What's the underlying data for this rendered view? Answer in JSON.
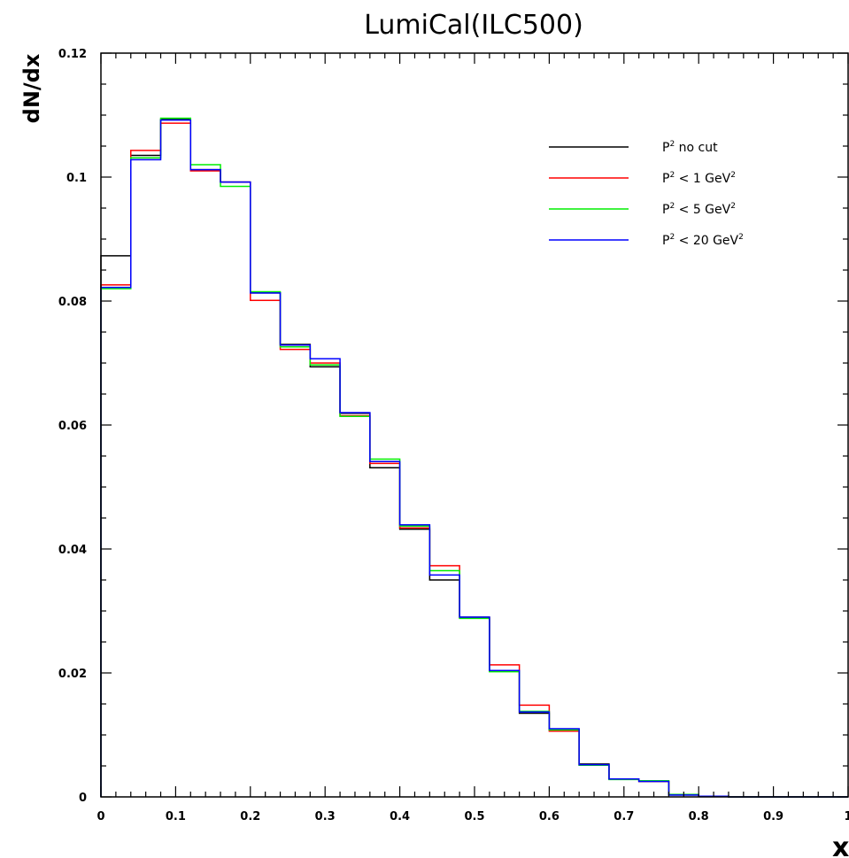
{
  "chart_data": {
    "type": "line",
    "title": "LumiCal(ILC500)",
    "xlabel": "x",
    "ylabel": "dN/dx",
    "xlim": [
      0,
      1
    ],
    "ylim": [
      0,
      0.12
    ],
    "xticks": [
      0,
      0.1,
      0.2,
      0.3,
      0.4,
      0.5,
      0.6,
      0.7,
      0.8,
      0.9,
      1
    ],
    "xtick_labels": [
      "0",
      "0.1",
      "0.2",
      "0.3",
      "0.4",
      "0.5",
      "0.6",
      "0.7",
      "0.8",
      "0.9",
      "1"
    ],
    "yticks": [
      0,
      0.02,
      0.04,
      0.06,
      0.08,
      0.1,
      0.12
    ],
    "ytick_labels": [
      "0",
      "0.02",
      "0.04",
      "0.06",
      "0.08",
      "0.1",
      "0.12"
    ],
    "grid": false,
    "legend_position": "top-right",
    "bin_edges": [
      0,
      0.04,
      0.08,
      0.12,
      0.16,
      0.2,
      0.24,
      0.28,
      0.32,
      0.36,
      0.4,
      0.44,
      0.48,
      0.52,
      0.56,
      0.6,
      0.64,
      0.68,
      0.72,
      0.76,
      0.8,
      0.84,
      0.88,
      0.92,
      0.96,
      1.0
    ],
    "series": [
      {
        "name": "no cut",
        "sup": "2",
        "prefix": "P",
        "unit": "",
        "color": "#000000",
        "values": [
          0.0873,
          0.1035,
          0.1093,
          0.1012,
          0.0992,
          0.0813,
          0.073,
          0.0694,
          0.0619,
          0.0531,
          0.0432,
          0.035,
          0.029,
          0.0203,
          0.0135,
          0.0108,
          0.0053,
          0.0029,
          0.0025,
          0.0003,
          0.0001,
          0,
          0,
          0,
          0
        ]
      },
      {
        "name": "<  1 GeV",
        "sup": "2",
        "prefix": "P",
        "unit": "2",
        "color": "#ff0000",
        "values": [
          0.0826,
          0.1043,
          0.1087,
          0.101,
          0.0992,
          0.0801,
          0.0722,
          0.07,
          0.0615,
          0.0538,
          0.0434,
          0.0373,
          0.0289,
          0.0213,
          0.0148,
          0.0106,
          0.0051,
          0.0029,
          0.0025,
          0.0004,
          0.0001,
          0,
          0,
          0,
          0
        ]
      },
      {
        "name": "<  5 GeV",
        "sup": "2",
        "prefix": "P",
        "unit": "2",
        "color": "#00ee00",
        "values": [
          0.082,
          0.1031,
          0.1095,
          0.102,
          0.0985,
          0.0815,
          0.0726,
          0.0697,
          0.0614,
          0.0545,
          0.0437,
          0.0365,
          0.0288,
          0.0202,
          0.0138,
          0.0108,
          0.0051,
          0.0028,
          0.0026,
          0.0004,
          0.0001,
          0,
          0,
          0,
          0
        ]
      },
      {
        "name": "<  20 GeV",
        "sup": "2",
        "prefix": "P",
        "unit": "2",
        "color": "#0000ff",
        "values": [
          0.0822,
          0.1028,
          0.1092,
          0.1012,
          0.0992,
          0.0813,
          0.0729,
          0.0707,
          0.062,
          0.0541,
          0.0439,
          0.0358,
          0.029,
          0.0204,
          0.0137,
          0.011,
          0.0052,
          0.0029,
          0.0025,
          0.0003,
          0.0001,
          0,
          0,
          0,
          0
        ]
      }
    ]
  }
}
